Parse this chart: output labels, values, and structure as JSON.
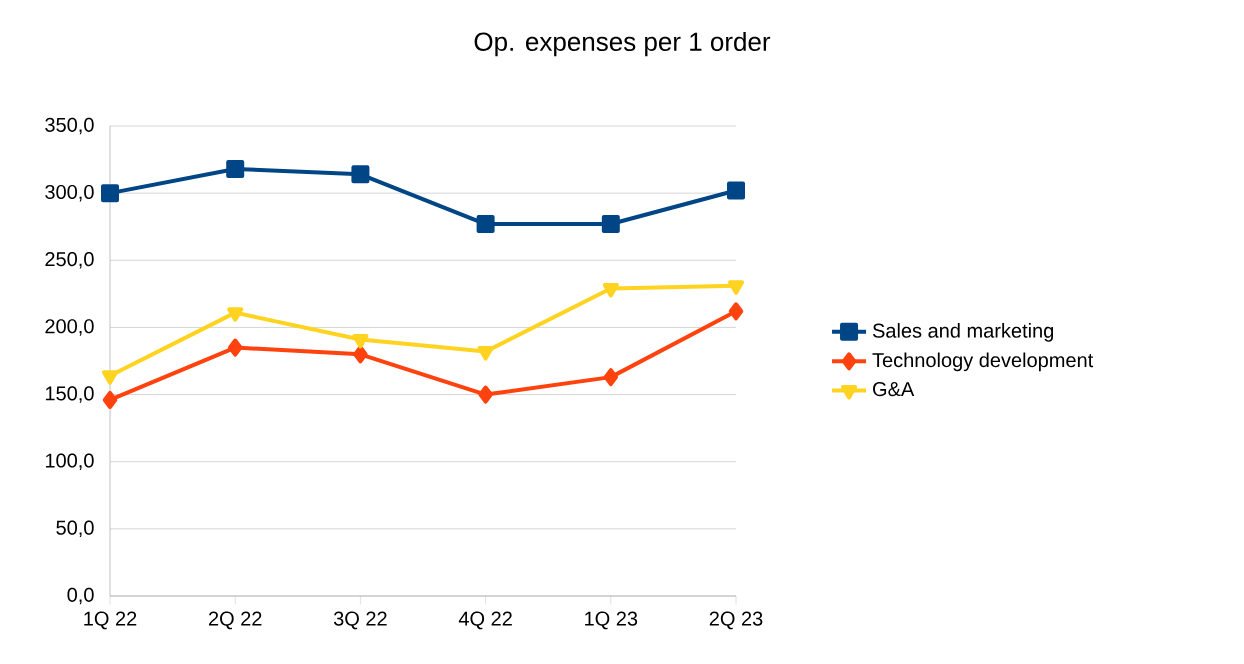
{
  "chart_data": {
    "type": "line",
    "title": "Op. expenses per 1 order",
    "categories": [
      "1Q 22",
      "2Q 22",
      "3Q 22",
      "4Q 22",
      "1Q 23",
      "2Q 23"
    ],
    "series": [
      {
        "name": "Sales and marketing",
        "color": "#004586",
        "marker": "square",
        "values": [
          300,
          318,
          314,
          277,
          277,
          302
        ]
      },
      {
        "name": "Technology  development",
        "color": "#ff420e",
        "marker": "diamond",
        "values": [
          146,
          185,
          180,
          150,
          163,
          212
        ]
      },
      {
        "name": "G&A",
        "color": "#ffd320",
        "marker": "triangle",
        "values": [
          164,
          211,
          191,
          182,
          229,
          231
        ]
      }
    ],
    "ylim": [
      0,
      350
    ],
    "yticks": [
      {
        "value": 0,
        "label": "0,0"
      },
      {
        "value": 50,
        "label": "50,0"
      },
      {
        "value": 100,
        "label": "100,0"
      },
      {
        "value": 150,
        "label": "150,0"
      },
      {
        "value": 200,
        "label": "200,0"
      },
      {
        "value": 250,
        "label": "250,0"
      },
      {
        "value": 300,
        "label": "300,0"
      },
      {
        "value": 350,
        "label": "350,0"
      }
    ],
    "grid": "y",
    "legend": "right",
    "line_style": "solid"
  }
}
